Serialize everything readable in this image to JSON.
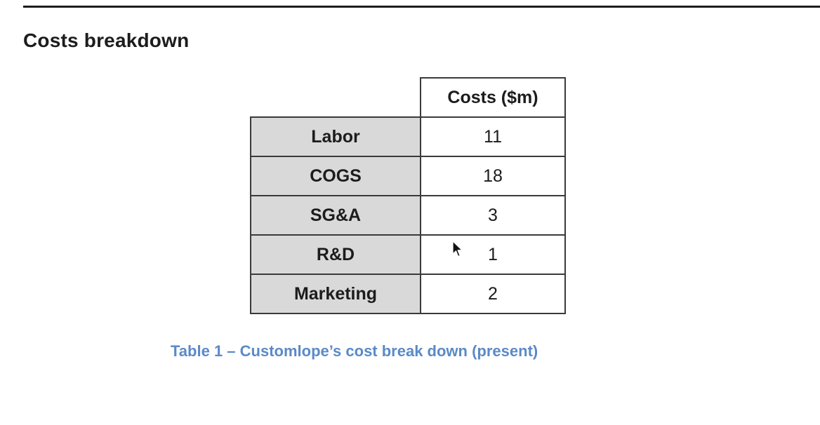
{
  "section": {
    "heading": "Costs breakdown"
  },
  "table": {
    "column_header": "Costs ($m)",
    "rows": [
      {
        "label": "Labor",
        "value": "11"
      },
      {
        "label": "COGS",
        "value": "18"
      },
      {
        "label": "SG&A",
        "value": "3"
      },
      {
        "label": "R&D",
        "value": "1"
      },
      {
        "label": "Marketing",
        "value": "2"
      }
    ]
  },
  "caption": "Table 1 – Customlope’s cost break down (present)",
  "colors": {
    "caption": "#5b8ac6",
    "label_cell_bg": "#d9d9d9",
    "border": "#3a3a3a"
  },
  "icons": {
    "cursor": "mouse-pointer-icon"
  }
}
